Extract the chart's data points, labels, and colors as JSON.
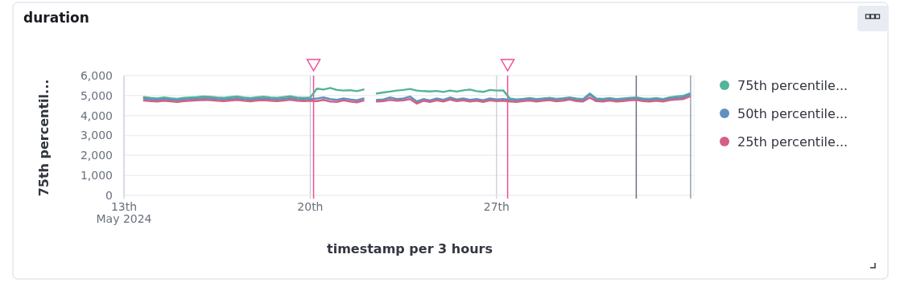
{
  "chart_data": {
    "type": "line",
    "title": "duration",
    "xlabel": "timestamp per 3 hours",
    "ylabel": "75th percentil...",
    "x": [
      "2024-05-13T18:00",
      "2024-05-14T00:00",
      "2024-05-14T06:00",
      "2024-05-14T12:00",
      "2024-05-14T18:00",
      "2024-05-15T00:00",
      "2024-05-15T06:00",
      "2024-05-15T12:00",
      "2024-05-15T18:00",
      "2024-05-16T00:00",
      "2024-05-16T06:00",
      "2024-05-16T12:00",
      "2024-05-16T18:00",
      "2024-05-17T00:00",
      "2024-05-17T06:00",
      "2024-05-17T12:00",
      "2024-05-17T18:00",
      "2024-05-18T00:00",
      "2024-05-18T06:00",
      "2024-05-18T12:00",
      "2024-05-18T18:00",
      "2024-05-19T00:00",
      "2024-05-19T06:00",
      "2024-05-19T12:00",
      "2024-05-19T18:00",
      "2024-05-20T00:00",
      "2024-05-20T06:00",
      "2024-05-20T12:00",
      "2024-05-20T18:00",
      "2024-05-21T00:00",
      "2024-05-21T06:00",
      "2024-05-21T12:00",
      "2024-05-21T18:00",
      "2024-05-22T00:00",
      "2024-05-22T06:00",
      "2024-05-22T12:00",
      "2024-05-22T18:00",
      "2024-05-23T00:00",
      "2024-05-23T06:00",
      "2024-05-23T12:00",
      "2024-05-23T18:00",
      "2024-05-24T00:00",
      "2024-05-24T06:00",
      "2024-05-24T12:00",
      "2024-05-24T18:00",
      "2024-05-25T00:00",
      "2024-05-25T06:00",
      "2024-05-25T12:00",
      "2024-05-25T18:00",
      "2024-05-26T00:00",
      "2024-05-26T06:00",
      "2024-05-26T12:00",
      "2024-05-26T18:00",
      "2024-05-27T00:00",
      "2024-05-27T06:00",
      "2024-05-27T12:00",
      "2024-05-27T18:00",
      "2024-05-28T00:00",
      "2024-05-28T06:00",
      "2024-05-28T12:00",
      "2024-05-28T18:00",
      "2024-05-29T00:00",
      "2024-05-29T06:00",
      "2024-05-29T12:00",
      "2024-05-29T18:00",
      "2024-05-30T00:00",
      "2024-05-30T06:00",
      "2024-05-30T12:00",
      "2024-05-30T18:00",
      "2024-05-31T00:00",
      "2024-05-31T06:00",
      "2024-05-31T12:00",
      "2024-05-31T18:00",
      "2024-06-01T00:00",
      "2024-06-01T06:00",
      "2024-06-01T12:00",
      "2024-06-01T18:00",
      "2024-06-02T00:00",
      "2024-06-02T06:00",
      "2024-06-02T12:00",
      "2024-06-02T18:00",
      "2024-06-03T00:00",
      "2024-06-03T06:00"
    ],
    "series": [
      {
        "name": "75th percentile...",
        "color": "#54b399",
        "values": [
          4920,
          4880,
          4850,
          4900,
          4860,
          4830,
          4880,
          4900,
          4920,
          4950,
          4930,
          4900,
          4880,
          4920,
          4950,
          4900,
          4870,
          4910,
          4940,
          4900,
          4880,
          4920,
          4960,
          4900,
          4880,
          4900,
          5350,
          5300,
          5380,
          5280,
          5250,
          5270,
          5220,
          5300,
          null,
          5100,
          5150,
          5200,
          5250,
          5280,
          5330,
          5250,
          5220,
          5200,
          5230,
          5180,
          5250,
          5200,
          5260,
          5300,
          5220,
          5180,
          5280,
          5250,
          5260,
          4850,
          4800,
          4830,
          4870,
          4820,
          4850,
          4880,
          4830,
          4860,
          4900,
          4850,
          4820,
          5100,
          4850,
          4830,
          4870,
          4820,
          4850,
          4880,
          4900,
          4850,
          4830,
          4870,
          4820,
          4900,
          4950,
          4980,
          5100
        ]
      },
      {
        "name": "50th percentile...",
        "color": "#6092c0",
        "values": [
          4850,
          4800,
          4780,
          4820,
          4790,
          4760,
          4800,
          4820,
          4840,
          4860,
          4850,
          4820,
          4800,
          4830,
          4860,
          4820,
          4790,
          4830,
          4850,
          4820,
          4800,
          4830,
          4870,
          4820,
          4800,
          4820,
          4850,
          4900,
          4820,
          4780,
          4850,
          4800,
          4760,
          4850,
          null,
          4780,
          4800,
          4900,
          4820,
          4850,
          4950,
          4700,
          4820,
          4750,
          4850,
          4780,
          4900,
          4800,
          4850,
          4780,
          4820,
          4760,
          4850,
          4800,
          4820,
          4780,
          4760,
          4800,
          4830,
          4780,
          4820,
          4850,
          4790,
          4820,
          4880,
          4800,
          4780,
          5050,
          4800,
          4780,
          4830,
          4780,
          4800,
          4840,
          4860,
          4800,
          4780,
          4820,
          4780,
          4850,
          4880,
          4900,
          5050
        ]
      },
      {
        "name": "25th percentile...",
        "color": "#d36086",
        "values": [
          4750,
          4720,
          4700,
          4740,
          4710,
          4680,
          4720,
          4740,
          4760,
          4780,
          4770,
          4740,
          4720,
          4750,
          4780,
          4740,
          4710,
          4750,
          4770,
          4740,
          4720,
          4750,
          4790,
          4740,
          4720,
          4740,
          4720,
          4780,
          4700,
          4680,
          4760,
          4700,
          4660,
          4750,
          null,
          4700,
          4720,
          4780,
          4740,
          4760,
          4820,
          4600,
          4740,
          4680,
          4760,
          4700,
          4800,
          4720,
          4760,
          4700,
          4740,
          4680,
          4760,
          4720,
          4740,
          4700,
          4680,
          4720,
          4750,
          4700,
          4740,
          4770,
          4710,
          4740,
          4800,
          4720,
          4700,
          4900,
          4720,
          4700,
          4750,
          4700,
          4720,
          4760,
          4780,
          4720,
          4700,
          4740,
          4700,
          4770,
          4800,
          4820,
          4950
        ]
      }
    ],
    "xlim": [
      "2024-05-13T00:00",
      "2024-06-03T10:00"
    ],
    "xticks": [
      {
        "value": "2024-05-13T00:00",
        "label": "13th\nMay 2024"
      },
      {
        "value": "2024-05-20T00:00",
        "label": "20th"
      },
      {
        "value": "2024-05-27T00:00",
        "label": "27th"
      }
    ],
    "ylim": [
      0,
      6000
    ],
    "yticks": [
      {
        "value": 0,
        "label": "0"
      },
      {
        "value": 1000,
        "label": "1,000"
      },
      {
        "value": 2000,
        "label": "2,000"
      },
      {
        "value": 3000,
        "label": "3,000"
      },
      {
        "value": 4000,
        "label": "4,000"
      },
      {
        "value": 5000,
        "label": "5,000"
      },
      {
        "value": 6000,
        "label": "6,000"
      }
    ],
    "ref_lines": [
      {
        "axis": "x",
        "value": "2024-05-20T03:00",
        "color": "#f04e98"
      },
      {
        "axis": "x",
        "value": "2024-05-27T10:00",
        "color": "#f04e98"
      },
      {
        "axis": "x",
        "value": "2024-06-01T06:00",
        "color": "#69707d"
      },
      {
        "axis": "x",
        "value": "2024-06-03T07:00",
        "color": "#98a2b3"
      }
    ],
    "grid": true,
    "legend": "right",
    "marker": "none",
    "line_style": "solid"
  }
}
